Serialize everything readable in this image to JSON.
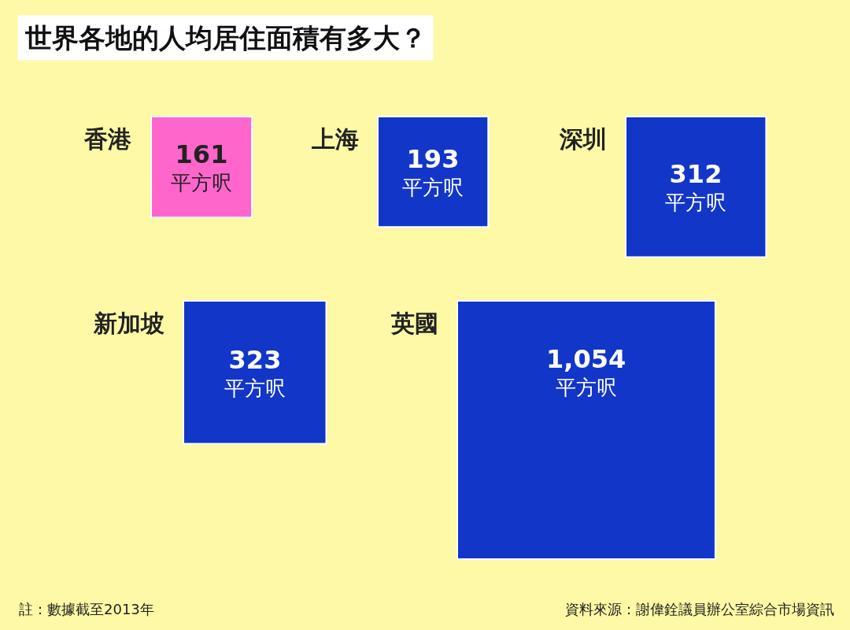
{
  "chart_data": {
    "type": "other",
    "title": "世界各地的人均居住面積有多大？",
    "categories": [
      "香港",
      "上海",
      "深圳",
      "新加坡",
      "英國"
    ],
    "values": [
      161,
      193,
      312,
      323,
      1054
    ],
    "value_labels": [
      "161\n平方呎",
      "193\n平方呎",
      "312\n平方呎",
      "323\n平方呎",
      "1,054\n平方呎"
    ],
    "colors": [
      "#ff66cc",
      "#1236c8",
      "#1236c8",
      "#1236c8",
      "#1236c8"
    ],
    "annotations": [
      "註：數據截至2013年",
      "資料來源：謝偉銓議員辦公室綜合市場資訊"
    ]
  }
}
